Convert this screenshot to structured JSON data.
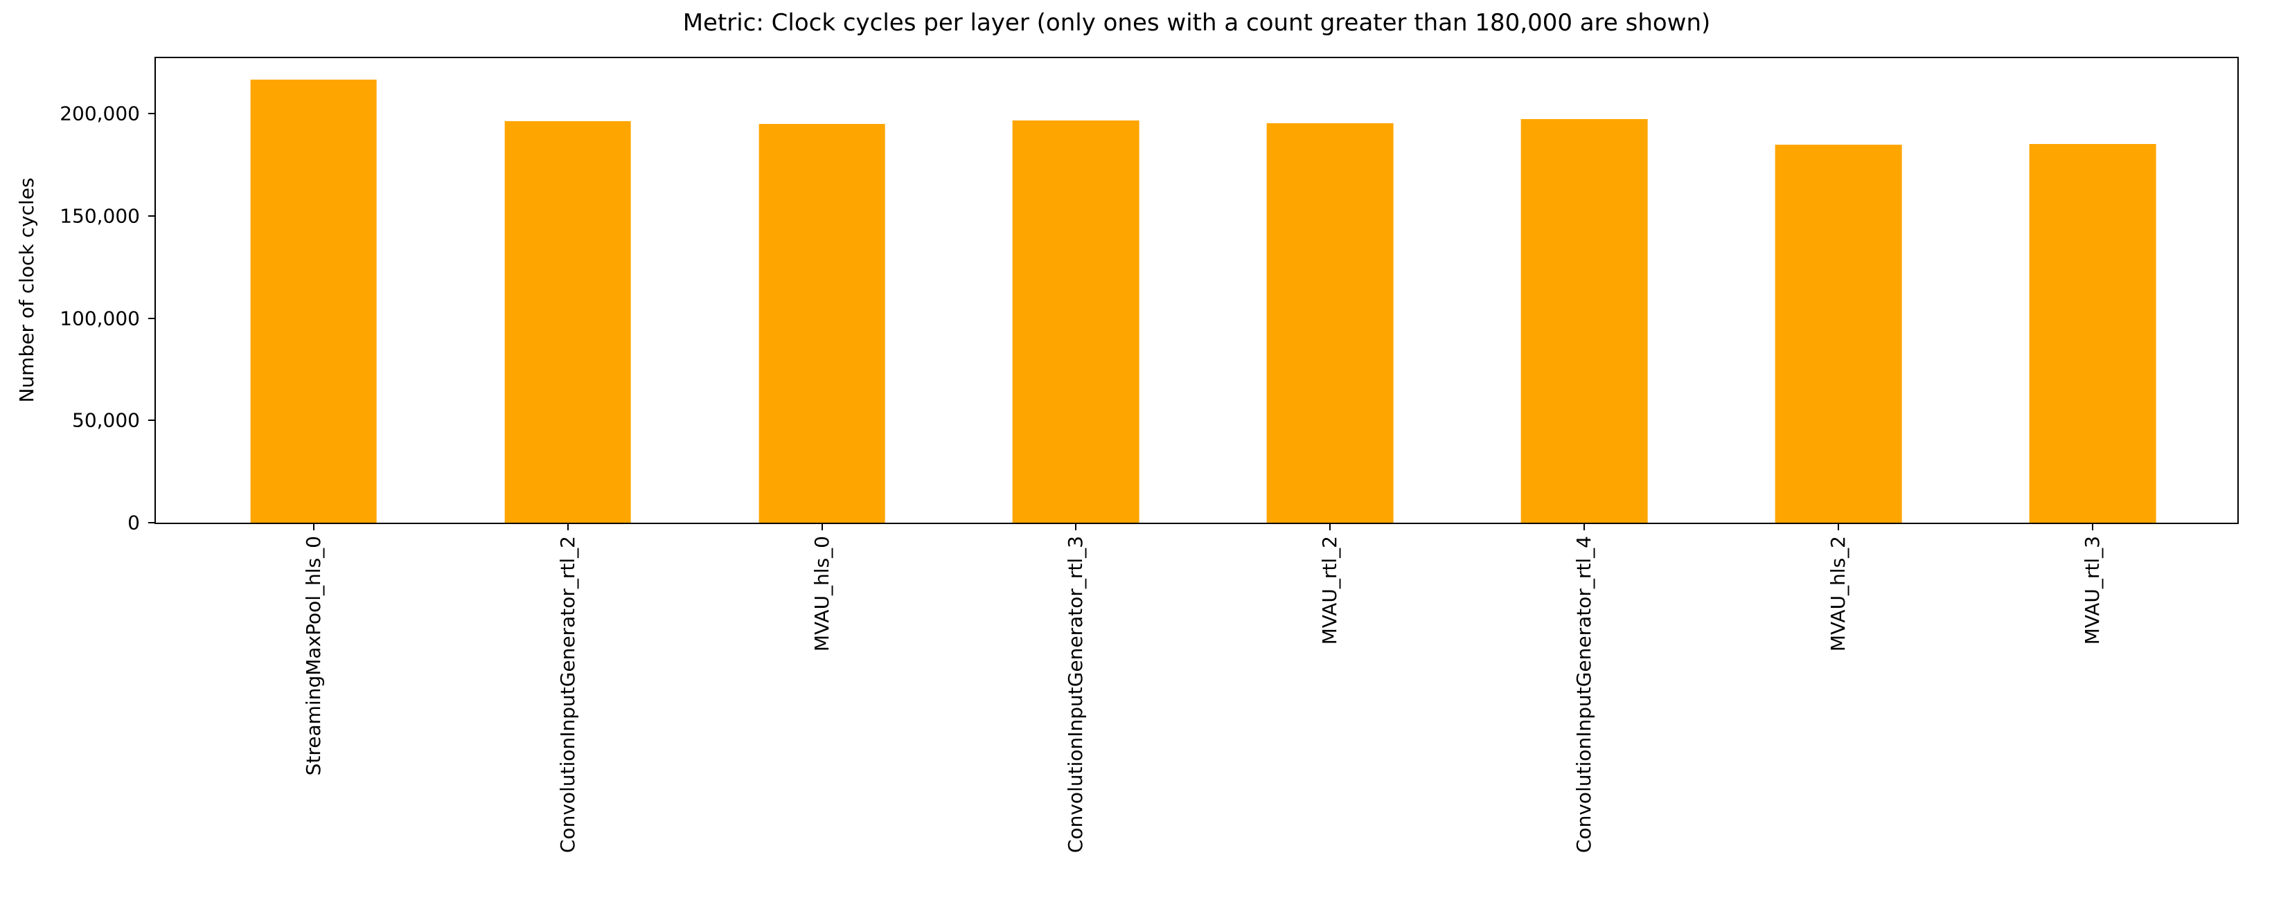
{
  "chart_data": {
    "type": "bar",
    "title": "Metric: Clock cycles per layer (only ones with a count greater than 180,000 are shown)",
    "xlabel": "",
    "ylabel": "Number of clock cycles",
    "categories": [
      "StreamingMaxPool_hls_0",
      "ConvolutionInputGenerator_rtl_2",
      "MVAU_hls_0",
      "ConvolutionInputGenerator_rtl_3",
      "MVAU_rtl_2",
      "ConvolutionInputGenerator_rtl_4",
      "MVAU_hls_2",
      "MVAU_rtl_3"
    ],
    "values": [
      216500,
      196400,
      195000,
      196600,
      195200,
      197200,
      184900,
      185100
    ],
    "bar_color": "#FFA500",
    "axis_color": "#000000",
    "background_color": "#FFFFFF",
    "ylim": [
      0,
      227100
    ],
    "yticks": [
      {
        "value": 0,
        "label": "0"
      },
      {
        "value": 50000,
        "label": "50,000"
      },
      {
        "value": 100000,
        "label": "100,000"
      },
      {
        "value": 150000,
        "label": "150,000"
      },
      {
        "value": 200000,
        "label": "200,000"
      }
    ],
    "x_tick_rotation": 90,
    "grid": false,
    "legend": false
  }
}
